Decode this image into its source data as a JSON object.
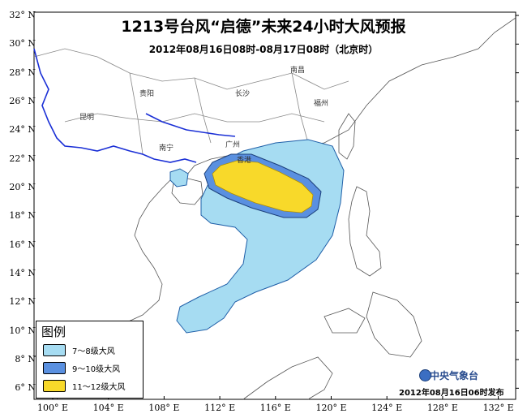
{
  "map": {
    "title": "1213号台风“启德”未来24小时大风预报",
    "subtitle": "2012年08月16日08时-08月17日08时（北京时）",
    "lat_ticks": [
      "32° N",
      "30° N",
      "28° N",
      "26° N",
      "24° N",
      "22° N",
      "20° N",
      "18° N",
      "16° N",
      "14° N",
      "12° N",
      "10° N",
      "8° N",
      "6° N"
    ],
    "lon_ticks": [
      "100° E",
      "104° E",
      "108° E",
      "112° E",
      "116° E",
      "120° E",
      "124° E",
      "128° E",
      "132° E"
    ],
    "extent": {
      "lon": [
        99,
        133
      ],
      "lat": [
        5,
        32
      ]
    },
    "cities": [
      "贵阳",
      "昆明",
      "南宁",
      "广州",
      "香港",
      "长沙",
      "南昌",
      "福州"
    ]
  },
  "legend": {
    "title": "图例",
    "items": [
      {
        "label": "7～8级大风",
        "color": "#a6dcf2"
      },
      {
        "label": "9～10级大风",
        "color": "#5a90e0"
      },
      {
        "label": "11～12级大风",
        "color": "#f8d92a"
      }
    ]
  },
  "footer": {
    "issuer": "中央气象台",
    "issue_time": "2012年08月16日06时发布"
  },
  "colors": {
    "land_border": "#555555",
    "river": "#1a2fd6",
    "frame": "#000000"
  }
}
